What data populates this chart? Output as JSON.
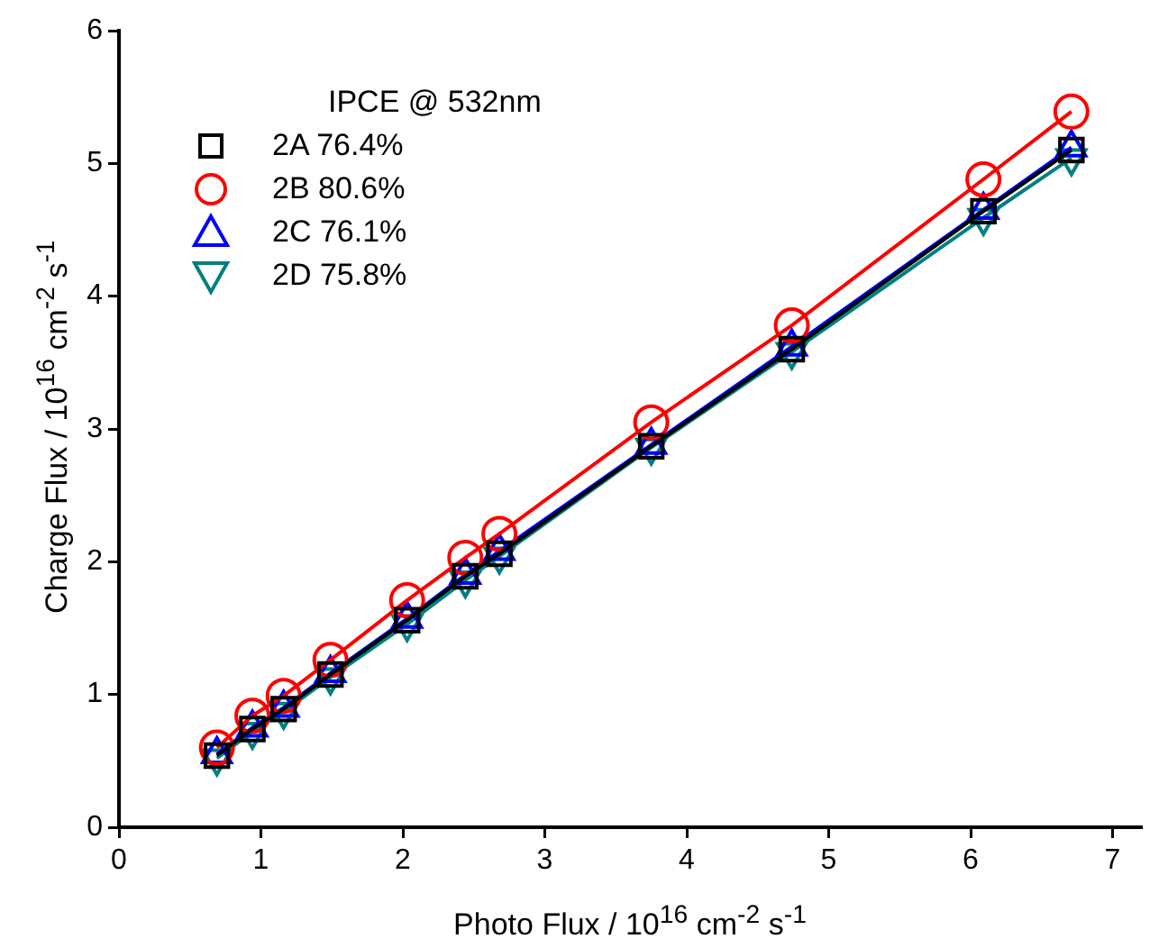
{
  "chart_data": {
    "type": "line",
    "xlabel": "Photo Flux / 10$^{16}$ cm$^{-2}$ s$^{-1}$",
    "ylabel": "Charge Flux / 10$^{16}$ cm$^{-2}$ s$^{-1}$",
    "legend_title": "IPCE @ 532nm",
    "legend": "top left",
    "grid": false,
    "x": [
      0.69,
      0.94,
      1.16,
      1.49,
      2.03,
      2.44,
      2.68,
      3.75,
      4.74,
      6.09,
      6.71
    ],
    "xlim": [
      0,
      7.2
    ],
    "xticks": [
      0,
      1,
      2,
      3,
      4,
      5,
      6,
      7
    ],
    "ylim": [
      0,
      6
    ],
    "yticks": [
      0,
      1,
      2,
      3,
      4,
      5,
      6
    ],
    "series": [
      {
        "name": "2A  76.4%",
        "color": "#000000",
        "marker": "square",
        "values": [
          0.54,
          0.74,
          0.89,
          1.15,
          1.56,
          1.89,
          2.06,
          2.87,
          3.6,
          4.64,
          5.1
        ]
      },
      {
        "name": "2B  80.6%",
        "color": "#ff0000",
        "marker": "circle",
        "values": [
          0.6,
          0.84,
          0.99,
          1.26,
          1.71,
          2.03,
          2.21,
          3.05,
          3.78,
          4.88,
          5.39
        ]
      },
      {
        "name": "2C  76.1%",
        "color": "#0000ff",
        "marker": "triangle",
        "values": [
          0.55,
          0.75,
          0.9,
          1.16,
          1.57,
          1.9,
          2.08,
          2.88,
          3.62,
          4.65,
          5.12
        ]
      },
      {
        "name": "2D  75.8%",
        "color": "#008080",
        "marker": "triangle",
        "values": [
          0.52,
          0.72,
          0.87,
          1.13,
          1.53,
          1.86,
          2.04,
          2.86,
          3.58,
          4.59,
          5.04
        ]
      }
    ]
  }
}
